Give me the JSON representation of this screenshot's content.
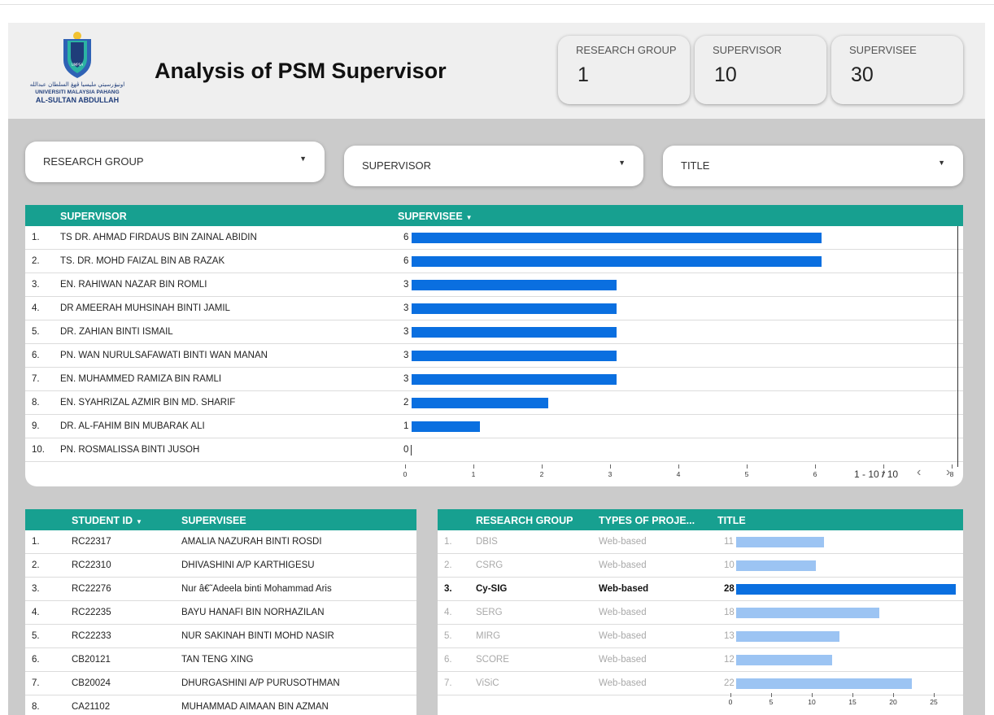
{
  "header": {
    "title": "Analysis of PSM Supervisor",
    "logo": {
      "arabic": "اونيۏرسيتي مليسيا ڤهڠ السلطان عبدالله",
      "line1": "UNIVERSITI MALAYSIA PAHANG",
      "line2": "AL-SULTAN ABDULLAH",
      "badge": "UMPSA"
    }
  },
  "kpis": [
    {
      "label": "RESEARCH GROUP",
      "value": "1"
    },
    {
      "label": "SUPERVISOR",
      "value": "10"
    },
    {
      "label": "SUPERVISEE",
      "value": "30"
    }
  ],
  "filters": [
    {
      "label": "RESEARCH GROUP",
      "icon": "caret-down-icon"
    },
    {
      "label": "SUPERVISOR",
      "icon": "caret-down-icon"
    },
    {
      "label": "TITLE",
      "icon": "caret-down-icon"
    }
  ],
  "supervisor_table": {
    "col_supervisor": "SUPERVISOR",
    "col_supervisee": "SUPERVISEE",
    "sort_icon": "caret-down-icon",
    "pager": "1 - 10 / 10",
    "axis_max": 8,
    "rows": [
      {
        "idx": "1.",
        "name": "TS DR. AHMAD FIRDAUS BIN ZAINAL ABIDIN",
        "value": 6
      },
      {
        "idx": "2.",
        "name": "TS. DR. MOHD FAIZAL BIN AB RAZAK",
        "value": 6
      },
      {
        "idx": "3.",
        "name": "EN. RAHIWAN NAZAR BIN ROMLI",
        "value": 3
      },
      {
        "idx": "4.",
        "name": "DR AMEERAH MUHSINAH BINTI JAMIL",
        "value": 3
      },
      {
        "idx": "5.",
        "name": "DR. ZAHIAN BINTI ISMAIL",
        "value": 3
      },
      {
        "idx": "6.",
        "name": "PN. WAN NURULSAFAWATI BINTI WAN MANAN",
        "value": 3
      },
      {
        "idx": "7.",
        "name": "EN. MUHAMMED RAMIZA BIN RAMLI",
        "value": 3
      },
      {
        "idx": "8.",
        "name": "EN. SYAHRIZAL AZMIR BIN MD. SHARIF",
        "value": 2
      },
      {
        "idx": "9.",
        "name": "DR. AL-FAHIM BIN MUBARAK ALI",
        "value": 1
      },
      {
        "idx": "10.",
        "name": "PN. ROSMALISSA BINTI JUSOH",
        "value": 0
      }
    ],
    "ticks": [
      "0",
      "1",
      "2",
      "3",
      "4",
      "5",
      "6",
      "7",
      "8"
    ]
  },
  "student_table": {
    "col_id": "STUDENT ID",
    "col_supervisee": "SUPERVISEE",
    "rows": [
      {
        "idx": "1.",
        "id": "RC22317",
        "name": "AMALIA NAZURAH BINTI ROSDI"
      },
      {
        "idx": "2.",
        "id": "RC22310",
        "name": "DHIVASHINI A/P KARTHIGESU"
      },
      {
        "idx": "3.",
        "id": "RC22276",
        "name": "Nur â€˜Adeela binti Mohammad Aris"
      },
      {
        "idx": "4.",
        "id": "RC22235",
        "name": "BAYU HANAFI BIN NORHAZILAN"
      },
      {
        "idx": "5.",
        "id": "RC22233",
        "name": "NUR SAKINAH BINTI MOHD NASIR"
      },
      {
        "idx": "6.",
        "id": "CB20121",
        "name": "TAN TENG XING"
      },
      {
        "idx": "7.",
        "id": "CB20024",
        "name": "DHURGASHINI A/P PURUSOTHMAN"
      },
      {
        "idx": "8.",
        "id": "CA21102",
        "name": "MUHAMMAD AIMAAN BIN AZMAN"
      }
    ]
  },
  "group_table": {
    "col_group": "RESEARCH GROUP",
    "col_type": "TYPES OF PROJE...",
    "col_title": "TITLE",
    "axis_max": 27.5,
    "rows": [
      {
        "idx": "1.",
        "group": "DBIS",
        "type": "Web-based",
        "value": 11,
        "state": "muted"
      },
      {
        "idx": "2.",
        "group": "CSRG",
        "type": "Web-based",
        "value": 10,
        "state": "muted"
      },
      {
        "idx": "3.",
        "group": "Cy-SIG",
        "type": "Web-based",
        "value": 28,
        "state": "selected"
      },
      {
        "idx": "4.",
        "group": "SERG",
        "type": "Web-based",
        "value": 18,
        "state": "muted"
      },
      {
        "idx": "5.",
        "group": "MIRG",
        "type": "Web-based",
        "value": 13,
        "state": "muted"
      },
      {
        "idx": "6.",
        "group": "SCORE",
        "type": "Web-based",
        "value": 12,
        "state": "muted"
      },
      {
        "idx": "7.",
        "group": "ViSiC",
        "type": "Web-based",
        "value": 22,
        "state": "muted"
      }
    ],
    "ticks": [
      "0",
      "5",
      "10",
      "15",
      "20",
      "25"
    ]
  },
  "colors": {
    "header_teal": "#17a090",
    "bar_blue": "#0a6fe0",
    "bar_light": "#9cc4f3"
  }
}
